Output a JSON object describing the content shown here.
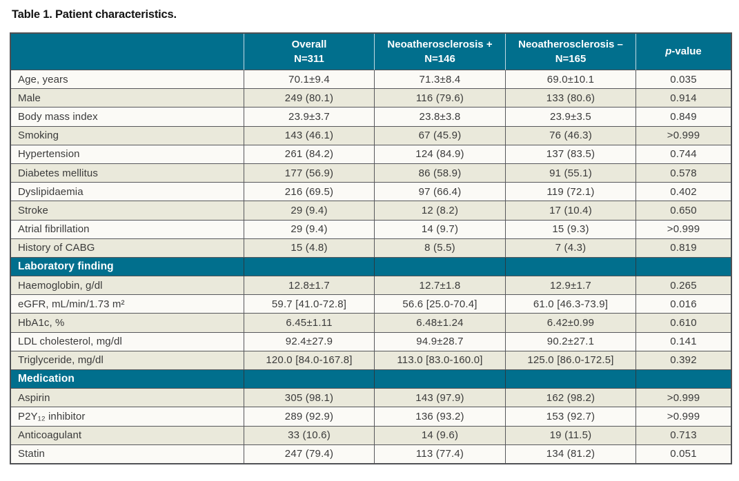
{
  "title": "Table 1. Patient characteristics.",
  "colors": {
    "header_teal": "#016f8d",
    "stripe_beige": "#eae9db",
    "stripe_offwhite": "#fbfaf6",
    "border_dark": "#55565a",
    "header_separator_light": "#c3dbe4",
    "header_text": "#ffffff",
    "body_text": "#3a3a3a"
  },
  "table": {
    "columns": [
      {
        "label": "",
        "sub": ""
      },
      {
        "label": "Overall",
        "sub": "N=311"
      },
      {
        "label": "Neoatherosclerosis +",
        "sub": "N=146"
      },
      {
        "label": "Neoatherosclerosis –",
        "sub": "N=165"
      },
      {
        "label_italic": "p",
        "label_rest": "-value"
      }
    ],
    "rows": [
      {
        "type": "data",
        "label": "Age, years",
        "values": [
          "70.1±9.4",
          "71.3±8.4",
          "69.0±10.1",
          "0.035"
        ]
      },
      {
        "type": "data",
        "label": "Male",
        "values": [
          "249 (80.1)",
          "116 (79.6)",
          "133 (80.6)",
          "0.914"
        ]
      },
      {
        "type": "data",
        "label": "Body mass index",
        "values": [
          "23.9±3.7",
          "23.8±3.8",
          "23.9±3.5",
          "0.849"
        ]
      },
      {
        "type": "data",
        "label": "Smoking",
        "values": [
          "143 (46.1)",
          "67 (45.9)",
          "76 (46.3)",
          ">0.999"
        ]
      },
      {
        "type": "data",
        "label": "Hypertension",
        "values": [
          "261 (84.2)",
          "124 (84.9)",
          "137 (83.5)",
          "0.744"
        ]
      },
      {
        "type": "data",
        "label": "Diabetes mellitus",
        "values": [
          "177 (56.9)",
          "86 (58.9)",
          "91 (55.1)",
          "0.578"
        ]
      },
      {
        "type": "data",
        "label": "Dyslipidaemia",
        "values": [
          "216 (69.5)",
          "97 (66.4)",
          "119 (72.1)",
          "0.402"
        ]
      },
      {
        "type": "data",
        "label": "Stroke",
        "values": [
          "29 (9.4)",
          "12 (8.2)",
          "17 (10.4)",
          "0.650"
        ]
      },
      {
        "type": "data",
        "label": "Atrial fibrillation",
        "values": [
          "29 (9.4)",
          "14 (9.7)",
          "15 (9.3)",
          ">0.999"
        ]
      },
      {
        "type": "data",
        "label": "History of CABG",
        "values": [
          "15 (4.8)",
          "8 (5.5)",
          "7 (4.3)",
          "0.819"
        ]
      },
      {
        "type": "section",
        "label": "Laboratory finding"
      },
      {
        "type": "data",
        "label": "Haemoglobin, g/dl",
        "values": [
          "12.8±1.7",
          "12.7±1.8",
          "12.9±1.7",
          "0.265"
        ]
      },
      {
        "type": "data",
        "label": "eGFR, mL/min/1.73 m²",
        "values": [
          "59.7 [41.0-72.8]",
          "56.6 [25.0-70.4]",
          "61.0 [46.3-73.9]",
          "0.016"
        ]
      },
      {
        "type": "data",
        "label": "HbA1c, %",
        "values": [
          "6.45±1.11",
          "6.48±1.24",
          "6.42±0.99",
          "0.610"
        ]
      },
      {
        "type": "data",
        "label": "LDL cholesterol, mg/dl",
        "values": [
          "92.4±27.9",
          "94.9±28.7",
          "90.2±27.1",
          "0.141"
        ]
      },
      {
        "type": "data",
        "label": "Triglyceride, mg/dl",
        "values": [
          "120.0 [84.0-167.8]",
          "113.0 [83.0-160.0]",
          "125.0 [86.0-172.5]",
          "0.392"
        ]
      },
      {
        "type": "section",
        "label": "Medication"
      },
      {
        "type": "data",
        "label": "Aspirin",
        "values": [
          "305 (98.1)",
          "143 (97.9)",
          "162 (98.2)",
          ">0.999"
        ]
      },
      {
        "type": "data",
        "label": "P2Y₁₂ inhibitor",
        "values": [
          "289 (92.9)",
          "136 (93.2)",
          "153 (92.7)",
          ">0.999"
        ]
      },
      {
        "type": "data",
        "label": "Anticoagulant",
        "values": [
          "33 (10.6)",
          "14 (9.6)",
          "19 (11.5)",
          "0.713"
        ]
      },
      {
        "type": "data",
        "label": "Statin",
        "values": [
          "247 (79.4)",
          "113 (77.4)",
          "134 (81.2)",
          "0.051"
        ]
      }
    ]
  }
}
